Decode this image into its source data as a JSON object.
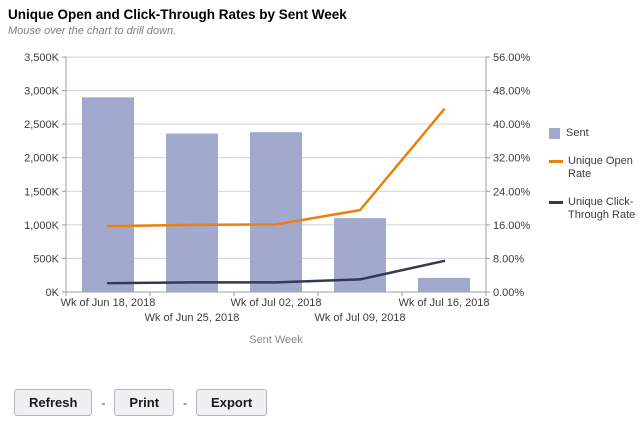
{
  "header": {
    "title": "Unique Open and Click-Through Rates by Sent Week",
    "subtitle": "Mouse over the chart to drill down."
  },
  "chart_data": {
    "type": "bar",
    "subtype": "combo-bar-line",
    "title": "Unique Open and Click-Through Rates by Sent Week",
    "categories": [
      "Wk of Jun 18, 2018",
      "Wk of Jun 25, 2018",
      "Wk of Jul 02, 2018",
      "Wk of Jul 09, 2018",
      "Wk of Jul 16, 2018"
    ],
    "xlabel": "Sent Week",
    "series": [
      {
        "name": "Sent",
        "type": "bar",
        "axis": "left",
        "color": "#A3A9CC",
        "values": [
          2900000,
          2360000,
          2380000,
          1100000,
          210000
        ]
      },
      {
        "name": "Unique Open Rate",
        "type": "line",
        "axis": "right",
        "color": "#E8820D",
        "values": [
          15.7,
          16.0,
          16.1,
          19.5,
          43.5
        ]
      },
      {
        "name": "Unique Click-Through Rate",
        "type": "line",
        "axis": "right",
        "color": "#333A56",
        "values": [
          2.1,
          2.3,
          2.3,
          3.0,
          7.4
        ]
      }
    ],
    "left_axis": {
      "min": 0,
      "max": 3500000,
      "tick_labels": [
        "0K",
        "500K",
        "1,000K",
        "1,500K",
        "2,000K",
        "2,500K",
        "3,000K",
        "3,500K"
      ]
    },
    "right_axis": {
      "min": 0,
      "max": 56,
      "tick_labels": [
        "0.00%",
        "8.00%",
        "16.00%",
        "24.00%",
        "32.00%",
        "40.00%",
        "48.00%",
        "56.00%"
      ]
    },
    "grid": true,
    "legend_position": "right"
  },
  "toolbar": {
    "refresh_label": "Refresh",
    "print_label": "Print",
    "export_label": "Export",
    "separator": "-"
  },
  "colors": {
    "bar": "#A3A9CC",
    "open_rate_line": "#E8820D",
    "ctr_line": "#333A56",
    "gridline": "#CBD1DE",
    "axis_line": "#9A9EA6",
    "tick_label": "#3C3C3C",
    "axis_title": "#8A8A8A",
    "subtitle": "#7F7F7F",
    "title": "#000000"
  }
}
